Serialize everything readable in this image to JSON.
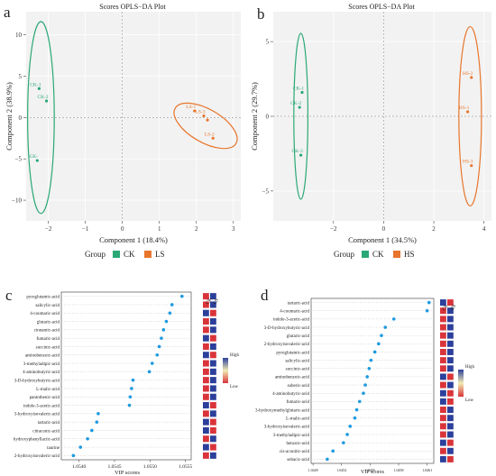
{
  "panels": {
    "a": {
      "letter": "a",
      "title": "Scores OPLS−DA Plot",
      "xlabel": "Component 1 (18.4%)",
      "ylabel": "Component 2 (38.9%)",
      "legend_title": "Group"
    },
    "b": {
      "letter": "b",
      "title": "Scores OPLS−DA Plot",
      "xlabel": "Component 1 (34.5%)",
      "ylabel": "Component 2 (29.7%)",
      "legend_title": "Group"
    },
    "c": {
      "letter": "c",
      "xlabel": "VIP scores",
      "col_labels": [
        "CK",
        "LS"
      ],
      "colorbar_high": "High",
      "colorbar_low": "Low"
    },
    "d": {
      "letter": "d",
      "xlabel": "VIP scores",
      "col_labels": [
        "CK",
        "HS"
      ],
      "colorbar_high": "High",
      "colorbar_low": "Low"
    }
  },
  "colors": {
    "CK": "#2aa876",
    "LS": "#e8762d",
    "HS": "#e8762d",
    "dot": "#1e9ae0",
    "high": "#2c3f9b",
    "low": "#d9343a"
  },
  "chart_data": [
    {
      "type": "scatter",
      "title": "Scores OPLS−DA Plot",
      "xlabel": "Component 1 (18.4%)",
      "ylabel": "Component 2 (38.9%)",
      "xlim": [
        -2.6,
        3.2
      ],
      "ylim": [
        -12.5,
        12.8
      ],
      "xticks": [
        -2,
        -1,
        0,
        1,
        2,
        3
      ],
      "yticks": [
        -10,
        -5,
        0,
        5,
        10
      ],
      "grid": true,
      "legend": "bottom",
      "series": [
        {
          "name": "CK",
          "points": [
            {
              "label": "CK-1",
              "x": -2.25,
              "y": 3.5
            },
            {
              "label": "CK-2",
              "x": -2.05,
              "y": 2.0
            },
            {
              "label": "CK-",
              "x": -2.3,
              "y": -5.2
            }
          ],
          "ellipse": {
            "cx": -2.2,
            "cy": 0.0,
            "rx": 0.36,
            "ry": 11.6
          }
        },
        {
          "name": "LS",
          "points": [
            {
              "label": "LS-1",
              "x": 1.95,
              "y": 0.8
            },
            {
              "label": "LS-3",
              "x": 2.2,
              "y": 0.2
            },
            {
              "label": "LS-2",
              "x": 2.45,
              "y": -2.5
            },
            {
              "label": "",
              "x": 2.3,
              "y": -0.3
            }
          ],
          "ellipse": {
            "cx": 2.25,
            "cy": -1.0,
            "rx": 0.95,
            "ry": 2.0,
            "tilt": 30
          }
        }
      ]
    },
    {
      "type": "scatter",
      "title": "Scores OPLS−DA Plot",
      "xlabel": "Component 1 (34.5%)",
      "ylabel": "Component 2 (29.7%)",
      "xlim": [
        -4.4,
        4.3
      ],
      "ylim": [
        -7.0,
        7.0
      ],
      "xticks": [
        -2,
        0,
        2,
        4
      ],
      "yticks": [
        -5,
        0,
        5
      ],
      "grid": true,
      "legend": "bottom",
      "series": [
        {
          "name": "CK",
          "points": [
            {
              "label": "CK-1",
              "x": -3.25,
              "y": 1.6
            },
            {
              "label": "CK-2",
              "x": -3.35,
              "y": 0.6
            },
            {
              "label": "CK-3",
              "x": -3.3,
              "y": -2.6
            }
          ],
          "ellipse": {
            "cx": -3.3,
            "cy": 0.0,
            "rx": 0.28,
            "ry": 5.55
          }
        },
        {
          "name": "HS",
          "points": [
            {
              "label": "HS-2",
              "x": 3.5,
              "y": 2.6
            },
            {
              "label": "HS-1",
              "x": 3.35,
              "y": 0.3
            },
            {
              "label": "HS-3",
              "x": 3.5,
              "y": -3.3
            }
          ],
          "ellipse": {
            "cx": 3.45,
            "cy": 0.0,
            "rx": 0.45,
            "ry": 6.0
          }
        }
      ]
    },
    {
      "type": "scatter",
      "subtype": "dot-plot",
      "xlabel": "VIP scores",
      "xlim": [
        1.05375,
        1.05558
      ],
      "xticks": [
        1.054,
        1.0545,
        1.055,
        1.0555
      ],
      "xtick_labels": [
        "1.0540",
        "1.0545",
        "1.0550",
        "1.0555"
      ],
      "heat_columns": [
        "CK",
        "LS"
      ],
      "categories": [
        "pyroglutamic-acid",
        "salicylic-acid",
        "4-coumaric-acid",
        "glutaric-acid",
        "cinnamic-acid",
        "fumaric-acid",
        "succinic-acid",
        "aminobenzoic-acid",
        "3-methyladipic-acid",
        "4-aminobutyric-acid",
        "3-D-hydroxybutyric-acid",
        "L-malic-acid",
        "pantothenic-acid",
        "indole-3-acetic-acid",
        "3-hydroxyisovaleric-acid",
        "tartaric-acid",
        "citraconic-acid",
        "hydroxyphenyllactic-acid",
        "taurine",
        "2-hydroxyisovaleric-acid"
      ],
      "values": [
        1.05545,
        1.05531,
        1.05528,
        1.05523,
        1.05519,
        1.05516,
        1.05513,
        1.0551,
        1.05503,
        1.05499,
        1.05476,
        1.05474,
        1.05472,
        1.05471,
        1.05427,
        1.05425,
        1.05418,
        1.05412,
        1.05402,
        1.05392
      ],
      "heat": [
        [
          "low",
          "high"
        ],
        [
          "low",
          "high"
        ],
        [
          "high",
          "low"
        ],
        [
          "low",
          "high"
        ],
        [
          "low",
          "high"
        ],
        [
          "high",
          "low"
        ],
        [
          "low",
          "high"
        ],
        [
          "high",
          "low"
        ],
        [
          "low",
          "high"
        ],
        [
          "low",
          "high"
        ],
        [
          "low",
          "high"
        ],
        [
          "low",
          "high"
        ],
        [
          "low",
          "high"
        ],
        [
          "high",
          "low"
        ],
        [
          "low",
          "high"
        ],
        [
          "high",
          "low"
        ],
        [
          "high",
          "low"
        ],
        [
          "low",
          "high"
        ],
        [
          "high",
          "low"
        ],
        [
          "low",
          "high"
        ]
      ]
    },
    {
      "type": "scatter",
      "subtype": "dot-plot",
      "xlabel": "VIP scores",
      "xlim": [
        1.04488,
        1.04617
      ],
      "xticks": [
        1.0449,
        1.0452,
        1.0455,
        1.0458,
        1.0461
      ],
      "xtick_labels": [
        "1.0449",
        "1.0452",
        "1.0455",
        "1.0458",
        "1.0461"
      ],
      "heat_columns": [
        "CK",
        "HS"
      ],
      "categories": [
        "tartaric-acid",
        "4-coumaric-acid",
        "indole-3-acetic-acid",
        "3-D-hydroxybutyric-acid",
        "glutaric-acid",
        "2-hydroxyisovaleric-acid",
        "pyroglutamic-acid",
        "salicylic-acid",
        "succinic-acid",
        "aminobenzoic-acid",
        "suberic-acid",
        "4-aminobutyric-acid",
        "fumaric-acid",
        "3-hydroxymethylglutaric-acid",
        "L-malic-acid",
        "3-hydroxyisovaleric-acid",
        "3-methyladipic-acid",
        "benzoic-acid",
        "cis-aconitic-acid",
        "sebacic-acid"
      ],
      "values": [
        1.04612,
        1.0461,
        1.04575,
        1.04566,
        1.04562,
        1.04559,
        1.04555,
        1.04551,
        1.04549,
        1.04547,
        1.04545,
        1.04543,
        1.04539,
        1.04536,
        1.04534,
        1.04529,
        1.04526,
        1.04522,
        1.04511,
        1.04505
      ],
      "heat": [
        [
          "high",
          "low"
        ],
        [
          "low",
          "high"
        ],
        [
          "low",
          "high"
        ],
        [
          "low",
          "high"
        ],
        [
          "low",
          "high"
        ],
        [
          "low",
          "high"
        ],
        [
          "low",
          "high"
        ],
        [
          "low",
          "high"
        ],
        [
          "low",
          "high"
        ],
        [
          "high",
          "low"
        ],
        [
          "low",
          "high"
        ],
        [
          "high",
          "low"
        ],
        [
          "high",
          "low"
        ],
        [
          "low",
          "high"
        ],
        [
          "low",
          "high"
        ],
        [
          "low",
          "high"
        ],
        [
          "low",
          "high"
        ],
        [
          "high",
          "low"
        ],
        [
          "low",
          "high"
        ],
        [
          "high",
          "low"
        ]
      ]
    }
  ]
}
